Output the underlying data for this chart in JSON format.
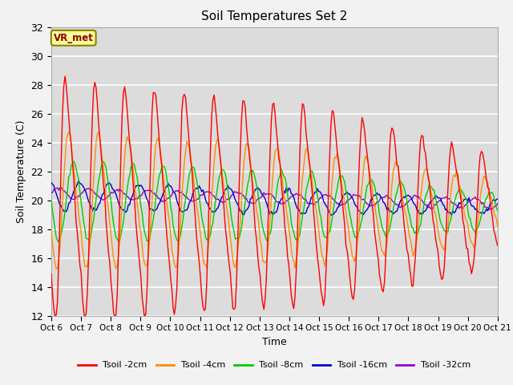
{
  "title": "Soil Temperatures Set 2",
  "xlabel": "Time",
  "ylabel": "Soil Temperature (C)",
  "ylim": [
    12,
    32
  ],
  "yticks": [
    12,
    14,
    16,
    18,
    20,
    22,
    24,
    26,
    28,
    30,
    32
  ],
  "x_labels": [
    "Oct 6",
    "Oct 7",
    "Oct 8",
    "Oct 9",
    "Oct 10",
    "Oct 11",
    "Oct 12",
    "Oct 13",
    "Oct 14",
    "Oct 15",
    "Oct 16",
    "Oct 17",
    "Oct 18",
    "Oct 19",
    "Oct 20",
    "Oct 21"
  ],
  "annotation_text": "VR_met",
  "annotation_color": "#8B0000",
  "annotation_bg": "#FFFF99",
  "annotation_edge": "#8B8000",
  "colors": {
    "Tsoil_2cm": "#FF0000",
    "Tsoil_4cm": "#FF8C00",
    "Tsoil_8cm": "#00CC00",
    "Tsoil_16cm": "#0000CC",
    "Tsoil_32cm": "#9900CC"
  },
  "legend_labels": [
    "Tsoil -2cm",
    "Tsoil -4cm",
    "Tsoil -8cm",
    "Tsoil -16cm",
    "Tsoil -32cm"
  ],
  "plot_bg_color": "#DCDCDC",
  "fig_bg_color": "#F2F2F2",
  "grid_color": "#FFFFFF",
  "linewidth": 1.0
}
